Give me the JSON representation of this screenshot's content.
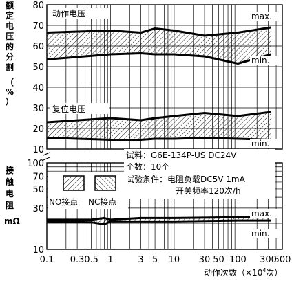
{
  "chart_data": {
    "type": "line",
    "x_scale": "log",
    "xlim": [
      0.1,
      500
    ],
    "x_ticks": [
      0.1,
      0.3,
      0.5,
      1,
      3,
      5,
      10,
      30,
      50,
      100,
      300,
      500
    ],
    "x_tick_labels": [
      "0.1",
      "0.3",
      "0.5",
      "1",
      "3",
      "5",
      "10",
      "30",
      "50",
      "100",
      "300",
      "500"
    ],
    "xlabel_prefix": "动作次数（×10",
    "xlabel_sup": "4",
    "xlabel_suffix": "次）",
    "grid": true,
    "upper_panel": {
      "ylabel_lines": [
        "额",
        "定",
        "电",
        "压",
        "的",
        "分",
        "割"
      ],
      "yunit_lines": [
        "（",
        "%",
        "）"
      ],
      "ylim": [
        10,
        80
      ],
      "y_ticks": [
        10,
        20,
        30,
        40,
        50,
        60,
        70,
        80
      ],
      "bands": [
        {
          "name": "动作电压",
          "x": [
            0.1,
            1,
            3,
            5,
            10,
            30,
            100,
            330
          ],
          "max": [
            66.5,
            67.5,
            66.5,
            68.5,
            67.5,
            65.0,
            66.5,
            69.0
          ],
          "min": [
            53.5,
            56.0,
            56.5,
            56.0,
            56.0,
            55.0,
            51.5,
            56.0
          ],
          "max_label": "max.",
          "min_label": "min."
        },
        {
          "name": "复位电压",
          "x": [
            0.1,
            1,
            3,
            5,
            10,
            30,
            100,
            330
          ],
          "max": [
            23.0,
            25.0,
            24.0,
            25.0,
            26.0,
            27.5,
            26.0,
            28.0
          ],
          "min": [
            15.5,
            14.5,
            14.5,
            15.0,
            15.0,
            15.5,
            15.0,
            14.5
          ],
          "min_label": "min."
        }
      ]
    },
    "lower_panel": {
      "ylabel_lines": [
        "接",
        "触",
        "电",
        "阻"
      ],
      "yunit": "mΩ",
      "y_scale": "log",
      "ylim": [
        10,
        100
      ],
      "y_ticks": [
        10,
        30,
        50,
        70,
        100
      ],
      "band": {
        "x": [
          0.1,
          0.5,
          0.8,
          1,
          3,
          5,
          10,
          100,
          330
        ],
        "max": [
          22.0,
          22.0,
          23.0,
          22.0,
          23.0,
          23.0,
          23.0,
          23.5,
          23.5
        ],
        "min": [
          21.0,
          20.5,
          19.5,
          21.0,
          21.0,
          21.0,
          21.0,
          21.5,
          21.5
        ],
        "max_label": "max.",
        "min_label": "min."
      },
      "legend": {
        "no_label": "NO接点",
        "nc_label": "NC接点"
      }
    },
    "annotations": {
      "sample": "试料：G6E-134P-US  DC24V",
      "count": "个数：10个",
      "condition": "试验条件：电阻负载DC5V 1mA",
      "frequency": "开关频率120次/h"
    },
    "colors": {
      "line": "#000000",
      "background": "#ffffff"
    }
  }
}
